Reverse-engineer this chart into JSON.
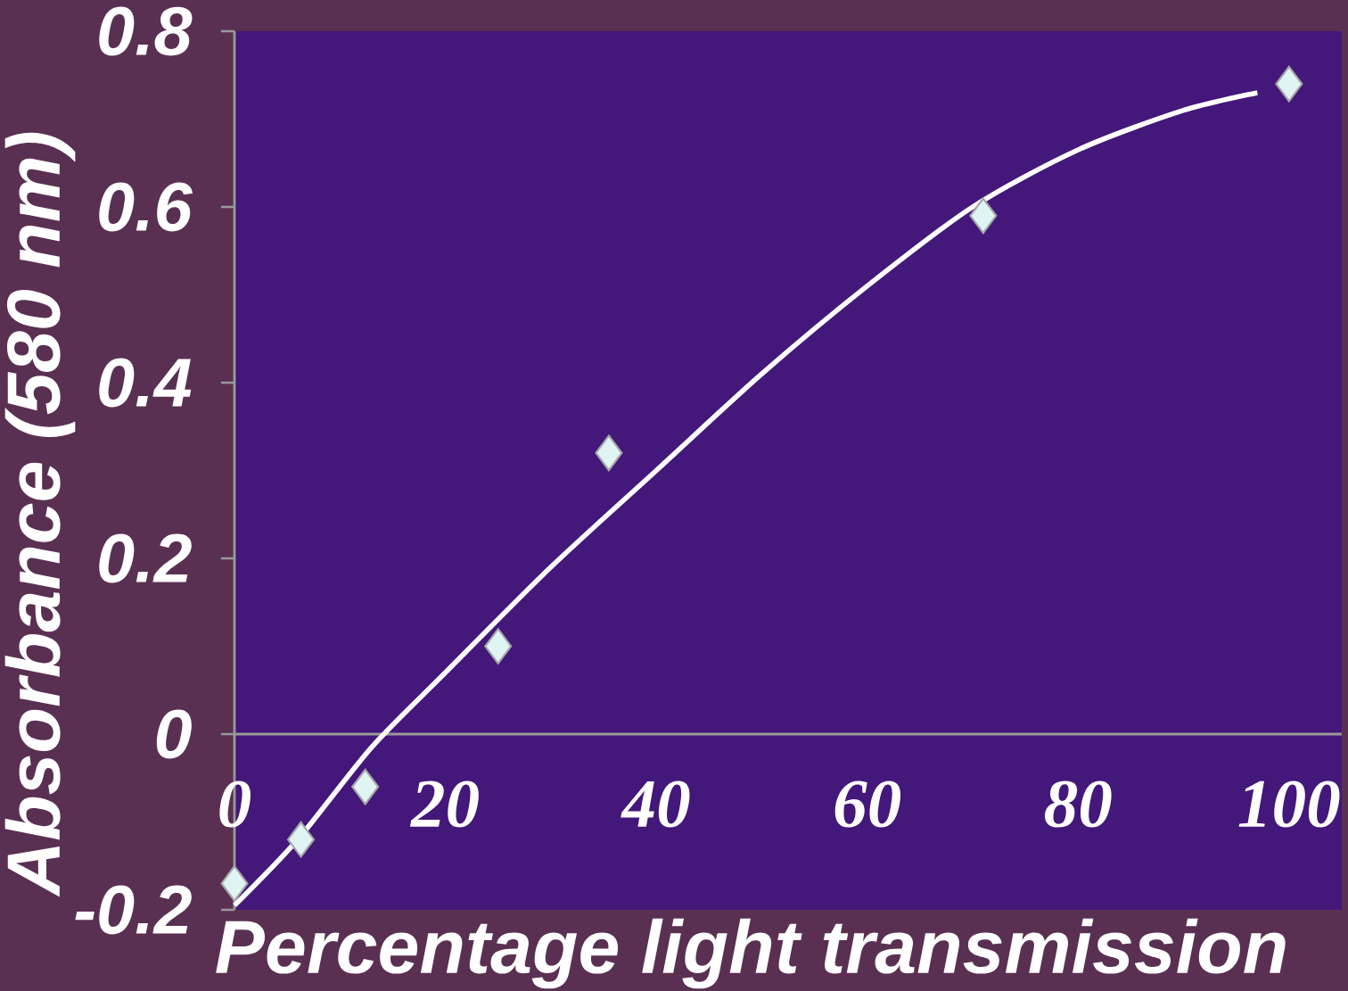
{
  "chart_data": {
    "type": "scatter",
    "xlabel": "Percentage light transmission",
    "ylabel": "Absorbance (580 nm)",
    "xlim": [
      0,
      105
    ],
    "ylim": [
      -0.2,
      0.8
    ],
    "xticks": [
      0,
      20,
      40,
      60,
      80,
      100
    ],
    "yticks": [
      -0.2,
      0,
      0.2,
      0.4,
      0.6,
      0.8
    ],
    "marker": "diamond",
    "grid": false,
    "series": [
      {
        "color": "#e0f4f4",
        "x": [
          0,
          6.3,
          12.4,
          25,
          35.5,
          71,
          100
        ],
        "values": [
          -0.17,
          -0.12,
          -0.06,
          0.1,
          0.32,
          0.59,
          0.74
        ]
      },
      {
        "type": "line",
        "color": "#ffffff",
        "marker": "none",
        "x": [
          0,
          6,
          13,
          20,
          30,
          40,
          50,
          60,
          70,
          80,
          90,
          97
        ],
        "values": [
          -0.195,
          -0.12,
          -0.015,
          0.07,
          0.19,
          0.3,
          0.41,
          0.51,
          0.6,
          0.665,
          0.71,
          0.73
        ]
      }
    ]
  }
}
